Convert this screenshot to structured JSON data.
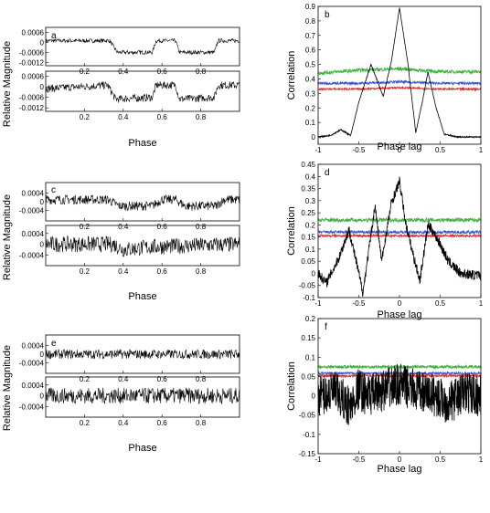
{
  "chart_data": [
    {
      "panel": "a",
      "type": "line",
      "ylabel": "Relative Magnitude",
      "xlabel": "Phase",
      "subplots": [
        {
          "xlim": [
            0,
            1
          ],
          "ylim": [
            -0.0014,
            0.0009
          ],
          "yticks": [
            0.0006,
            0,
            -0.0006,
            -0.0012
          ],
          "ytick_labels": [
            "0.0006",
            "0",
            "-0.0006",
            "-0.0012"
          ],
          "xticks": [
            0.2,
            0.4,
            0.6,
            0.8
          ],
          "xtick_labels": [
            "0.2",
            "0.4",
            "0.6",
            "0.8"
          ],
          "levels": [
            [
              0,
              0.0001
            ],
            [
              0.33,
              0.0001
            ],
            [
              0.37,
              -0.0006
            ],
            [
              0.55,
              -0.0006
            ],
            [
              0.57,
              0.0001
            ],
            [
              0.67,
              0.0001
            ],
            [
              0.69,
              -0.0006
            ],
            [
              0.87,
              -0.0006
            ],
            [
              0.89,
              0.0001
            ],
            [
              1,
              0.0001
            ]
          ],
          "noise": 0.00012
        },
        {
          "xlim": [
            0,
            1
          ],
          "ylim": [
            -0.0014,
            0.0009
          ],
          "yticks": [
            0.0006,
            0,
            -0.0006,
            -0.0012
          ],
          "ytick_labels": [
            "0.0006",
            "0",
            "-0.0006",
            "-0.0012"
          ],
          "xticks": [
            0.2,
            0.4,
            0.6,
            0.8
          ],
          "xtick_labels": [
            "0.2",
            "0.4",
            "0.6",
            "0.8"
          ],
          "levels": [
            [
              0,
              -0.0001
            ],
            [
              0.32,
              0.0001
            ],
            [
              0.36,
              -0.0007
            ],
            [
              0.55,
              -0.0006
            ],
            [
              0.57,
              0.0001
            ],
            [
              0.67,
              0.0001
            ],
            [
              0.69,
              -0.0007
            ],
            [
              0.87,
              -0.0006
            ],
            [
              0.89,
              0.0001
            ],
            [
              1,
              0.0001
            ]
          ],
          "noise": 0.00022
        }
      ]
    },
    {
      "panel": "b",
      "type": "line",
      "xlabel": "Phase lag",
      "ylabel": "Correlation",
      "xlim": [
        -1,
        1
      ],
      "ylim": [
        -0.05,
        0.9
      ],
      "xticks": [
        -1,
        -0.5,
        0,
        0.5,
        1
      ],
      "xtick_labels": [
        "-1",
        "-0.5",
        "0",
        "0.5",
        "1"
      ],
      "yticks": [
        0,
        0.1,
        0.2,
        0.3,
        0.4,
        0.5,
        0.6,
        0.7,
        0.8,
        0.9
      ],
      "ytick_labels": [
        "0",
        "0.1",
        "0.2",
        "0.3",
        "0.4",
        "0.5",
        "0.6",
        "0.7",
        "0.8",
        "0.9"
      ],
      "series": [
        {
          "color": "#44b044",
          "x": [
            -1,
            -0.5,
            0,
            0.5,
            1
          ],
          "y": [
            0.44,
            0.46,
            0.47,
            0.45,
            0.45
          ],
          "noise": 0.012
        },
        {
          "color": "#3a55c8",
          "x": [
            -1,
            -0.5,
            0,
            0.5,
            1
          ],
          "y": [
            0.37,
            0.37,
            0.38,
            0.37,
            0.37
          ],
          "noise": 0.008
        },
        {
          "color": "#d83030",
          "x": [
            -1,
            -0.5,
            0,
            0.5,
            1
          ],
          "y": [
            0.33,
            0.33,
            0.34,
            0.33,
            0.33
          ],
          "noise": 0.006
        },
        {
          "color": "#000000",
          "x": [
            -1,
            -0.85,
            -0.72,
            -0.6,
            -0.5,
            -0.35,
            -0.2,
            -0.1,
            0,
            0.1,
            0.2,
            0.28,
            0.35,
            0.45,
            0.55,
            0.7,
            1
          ],
          "y": [
            0.0,
            0.01,
            0.05,
            0.01,
            0.24,
            0.5,
            0.28,
            0.52,
            0.89,
            0.52,
            0.03,
            0.24,
            0.45,
            0.2,
            0.02,
            0.0,
            0.0
          ],
          "noise": 0.004
        }
      ]
    },
    {
      "panel": "c",
      "type": "line",
      "ylabel": "Relative Magnitude",
      "xlabel": "Phase",
      "subplots": [
        {
          "xlim": [
            0,
            1
          ],
          "ylim": [
            -0.0009,
            0.0009
          ],
          "yticks": [
            0.0004,
            0,
            -0.0004
          ],
          "ytick_labels": [
            "0.0004",
            "0",
            "-0.0004"
          ],
          "xticks": [
            0.2,
            0.4,
            0.6,
            0.8
          ],
          "xtick_labels": [
            "0.2",
            "0.4",
            "0.6",
            "0.8"
          ],
          "levels": [
            [
              0,
              0.0001
            ],
            [
              0.32,
              0.0001
            ],
            [
              0.38,
              -0.0002
            ],
            [
              0.55,
              -0.0002
            ],
            [
              0.6,
              0.0001
            ],
            [
              0.67,
              0.0001
            ],
            [
              0.72,
              -0.0002
            ],
            [
              0.88,
              -0.0002
            ],
            [
              0.92,
              0.0001
            ],
            [
              1,
              0.0001
            ]
          ],
          "noise": 0.00022
        },
        {
          "xlim": [
            0,
            1
          ],
          "ylim": [
            -0.0008,
            0.0007
          ],
          "yticks": [
            0.0004,
            0,
            -0.0004
          ],
          "ytick_labels": [
            "0.0004",
            "0",
            "-0.0004"
          ],
          "xticks": [
            0.2,
            0.4,
            0.6,
            0.8
          ],
          "xtick_labels": [
            "0.2",
            "0.4",
            "0.6",
            "0.8"
          ],
          "levels": [
            [
              0,
              0.0
            ],
            [
              0.35,
              0.0
            ],
            [
              0.4,
              -0.0002
            ],
            [
              0.55,
              -0.0001
            ],
            [
              1,
              0.0
            ]
          ],
          "noise": 0.0003
        }
      ]
    },
    {
      "panel": "d",
      "type": "line",
      "xlabel": "Phase lag",
      "ylabel": "Correlation",
      "xlim": [
        -1,
        1
      ],
      "ylim": [
        -0.1,
        0.45
      ],
      "xticks": [
        -1,
        -0.5,
        0,
        0.5,
        1
      ],
      "xtick_labels": [
        "-1",
        "-0.5",
        "0",
        "0.5",
        "1"
      ],
      "yticks": [
        -0.1,
        -0.05,
        0,
        0.05,
        0.1,
        0.15,
        0.2,
        0.25,
        0.3,
        0.35,
        0.4,
        0.45
      ],
      "ytick_labels": [
        "-0.1",
        "-0.05",
        "0",
        "0.05",
        "0.1",
        "0.15",
        "0.2",
        "0.25",
        "0.3",
        "0.35",
        "0.4",
        "0.45"
      ],
      "series": [
        {
          "color": "#44b044",
          "x": [
            -1,
            0,
            1
          ],
          "y": [
            0.22,
            0.22,
            0.22
          ],
          "noise": 0.008
        },
        {
          "color": "#3a55c8",
          "x": [
            -1,
            0,
            1
          ],
          "y": [
            0.17,
            0.17,
            0.17
          ],
          "noise": 0.006
        },
        {
          "color": "#d83030",
          "x": [
            -1,
            0,
            1
          ],
          "y": [
            0.155,
            0.155,
            0.155
          ],
          "noise": 0.005
        },
        {
          "color": "#000000",
          "x": [
            -1,
            -0.9,
            -0.75,
            -0.62,
            -0.5,
            -0.45,
            -0.3,
            -0.22,
            -0.1,
            0,
            0.08,
            0.15,
            0.25,
            0.35,
            0.4,
            0.5,
            0.6,
            0.75,
            1
          ],
          "y": [
            0.0,
            -0.04,
            0.06,
            0.18,
            0.0,
            -0.08,
            0.28,
            0.05,
            0.29,
            0.38,
            0.2,
            0.1,
            -0.03,
            0.2,
            0.18,
            0.12,
            0.05,
            0.0,
            -0.01
          ],
          "noise": 0.02
        }
      ]
    },
    {
      "panel": "e",
      "type": "line",
      "ylabel": "Relative Magnitude",
      "xlabel": "Phase",
      "subplots": [
        {
          "xlim": [
            0,
            1
          ],
          "ylim": [
            -0.0009,
            0.0009
          ],
          "yticks": [
            0.0004,
            0,
            -0.0004
          ],
          "ytick_labels": [
            "0.0004",
            "0",
            "-0.0004"
          ],
          "xticks": [
            0.2,
            0.4,
            0.6,
            0.8
          ],
          "xtick_labels": [
            "0.2",
            "0.4",
            "0.6",
            "0.8"
          ],
          "levels": [
            [
              0,
              0.0
            ],
            [
              1,
              0.0
            ]
          ],
          "noise": 0.00022
        },
        {
          "xlim": [
            0,
            1
          ],
          "ylim": [
            -0.0008,
            0.0007
          ],
          "yticks": [
            0.0004,
            0,
            -0.0004
          ],
          "ytick_labels": [
            "0.0004",
            "0",
            "-0.0004"
          ],
          "xticks": [
            0.2,
            0.4,
            0.6,
            0.8
          ],
          "xtick_labels": [
            "0.2",
            "0.4",
            "0.6",
            "0.8"
          ],
          "levels": [
            [
              0,
              0.0
            ],
            [
              1,
              0.0
            ]
          ],
          "noise": 0.0003
        }
      ]
    },
    {
      "panel": "f",
      "type": "line",
      "xlabel": "Phase lag",
      "ylabel": "Correlation",
      "xlim": [
        -1,
        1
      ],
      "ylim": [
        -0.15,
        0.2
      ],
      "xticks": [
        -1,
        -0.5,
        0,
        0.5,
        1
      ],
      "xtick_labels": [
        "-1",
        "-0.5",
        "0",
        "0.5",
        "1"
      ],
      "yticks": [
        -0.15,
        -0.1,
        -0.05,
        0,
        0.05,
        0.1,
        0.15,
        0.2
      ],
      "ytick_labels": [
        "-0.15",
        "-0.1",
        "-0.05",
        "0",
        "0.05",
        "0.1",
        "0.15",
        "0.2"
      ],
      "series": [
        {
          "color": "#44b044",
          "x": [
            -1,
            0,
            1
          ],
          "y": [
            0.075,
            0.075,
            0.075
          ],
          "noise": 0.004
        },
        {
          "color": "#3a55c8",
          "x": [
            -1,
            0,
            1
          ],
          "y": [
            0.058,
            0.058,
            0.058
          ],
          "noise": 0.003
        },
        {
          "color": "#d83030",
          "x": [
            -1,
            0,
            1
          ],
          "y": [
            0.052,
            0.052,
            0.052
          ],
          "noise": 0.003
        },
        {
          "color": "#000000",
          "x": [
            -1,
            -0.8,
            -0.6,
            -0.5,
            -0.4,
            -0.25,
            0,
            0.25,
            0.45,
            0.6,
            0.8,
            1
          ],
          "y": [
            0.0,
            0.01,
            -0.03,
            0.02,
            0.0,
            0.01,
            0.03,
            0.01,
            0.0,
            -0.02,
            0.01,
            0.0
          ],
          "noise": 0.055
        }
      ]
    }
  ]
}
